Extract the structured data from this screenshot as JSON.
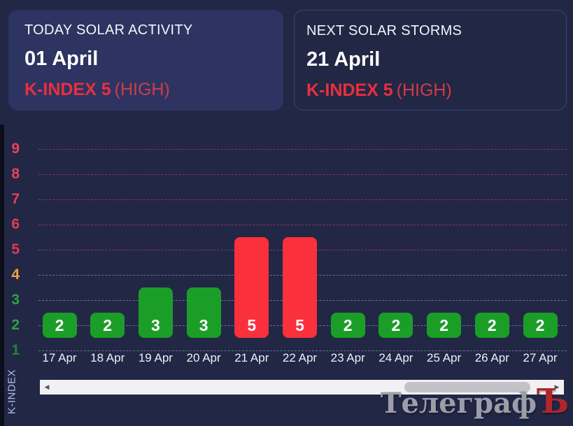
{
  "header": {
    "today_panel": {
      "title": "TODAY SOLAR ACTIVITY",
      "date": "01 April",
      "kindex": "K-INDEX 5",
      "level": "(HIGH)"
    },
    "next_panel": {
      "title": "NEXT SOLAR STORMS",
      "date": "21 April",
      "kindex": "K-INDEX 5",
      "level": "(HIGH)"
    }
  },
  "chart_data": {
    "type": "bar",
    "categories": [
      "17 Apr",
      "18 Apr",
      "19 Apr",
      "20 Apr",
      "21 Apr",
      "22 Apr",
      "23 Apr",
      "24 Apr",
      "25 Apr",
      "26 Apr",
      "27 Apr"
    ],
    "values": [
      2,
      2,
      3,
      3,
      5,
      5,
      2,
      2,
      2,
      2,
      2
    ],
    "ylabel": "K-INDEX",
    "yticks": [
      9,
      8,
      7,
      6,
      5,
      4,
      3,
      2,
      1
    ],
    "ylim": [
      0,
      9
    ],
    "grid": "horizontal-dashed",
    "bar_value_labels": true,
    "colors": {
      "storm_threshold": 5,
      "bar_normal": "#1b9e28",
      "bar_storm": "#fa303c",
      "grid_high": "rgba(236,64,90,0.55)",
      "grid_low": "rgba(196,202,220,0.45)",
      "ytick_colors": {
        "9": "#ef4156",
        "8": "#ec4056",
        "7": "#e53e54",
        "6": "#e23c55",
        "5": "#dd3a56",
        "4": "#f0a33c",
        "3": "#2ea341",
        "2": "#2ca341",
        "1": "#27803a"
      }
    }
  },
  "scrollbar": {
    "left_arrow_icon": "◀",
    "right_arrow_icon": "▶"
  },
  "watermark": {
    "text": "ТелеграфЪ",
    "gray_part": "Телеграф",
    "red_part": "Ъ",
    "gray_color": "#9d9da8",
    "red_color": "#b1252b"
  }
}
